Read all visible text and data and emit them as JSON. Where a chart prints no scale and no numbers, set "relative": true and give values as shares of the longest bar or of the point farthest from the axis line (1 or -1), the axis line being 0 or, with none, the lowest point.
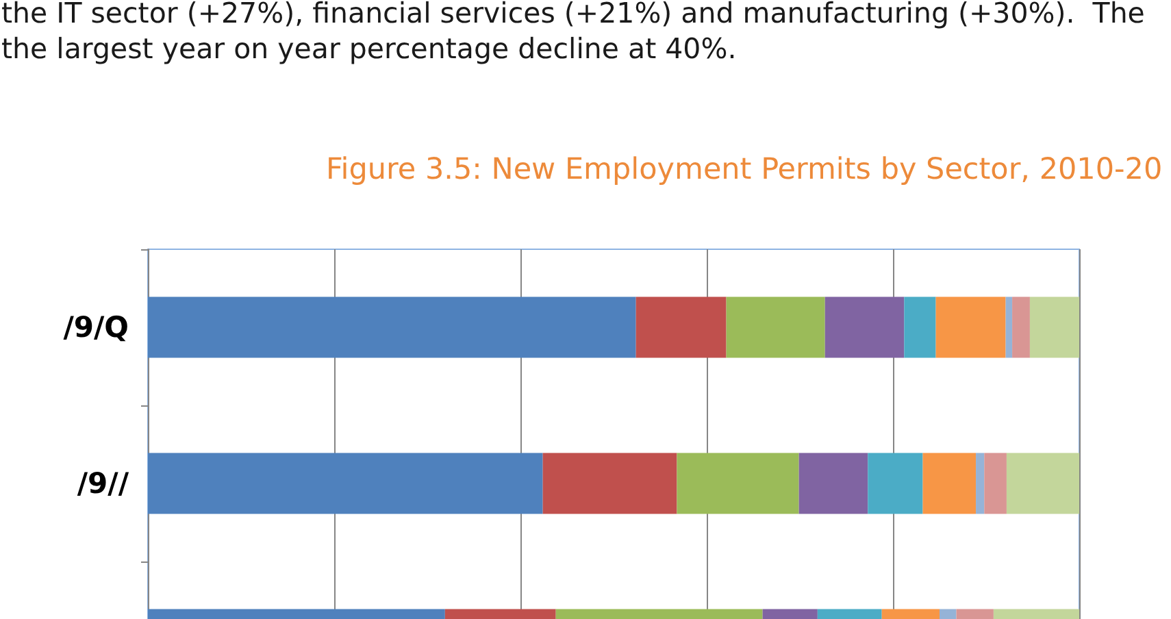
{
  "chart_data": {
    "type": "bar",
    "orientation": "horizontal",
    "stacked": true,
    "relative": true,
    "grid": "x",
    "title": "Figure 3.5: New Employment Permits by Sector, 2010-20",
    "annotations": [
      "the IT sector (+27%), financial services (+21%) and manufacturing (+30%).  The",
      "the largest year on year percentage decline at 40%."
    ],
    "categories": [
      "/9/Q",
      "/9//",
      null
    ],
    "series": [
      {
        "color": "#4f81bd",
        "values": [
          0.524,
          0.424,
          0.319
        ]
      },
      {
        "color": "#c0504d",
        "values": [
          0.097,
          0.144,
          0.119
        ]
      },
      {
        "color": "#9bbb59",
        "values": [
          0.106,
          0.131,
          0.222
        ]
      },
      {
        "color": "#8064a2",
        "values": [
          0.085,
          0.074,
          0.059
        ]
      },
      {
        "color": "#4bacc6",
        "values": [
          0.034,
          0.059,
          0.069
        ]
      },
      {
        "color": "#f79646",
        "values": [
          0.075,
          0.057,
          0.062
        ]
      },
      {
        "color": "#95b3d7",
        "values": [
          0.007,
          0.009,
          0.018
        ]
      },
      {
        "color": "#d99694",
        "values": [
          0.019,
          0.024,
          0.04
        ]
      },
      {
        "color": "#c3d69b",
        "values": [
          0.053,
          0.078,
          0.092
        ]
      }
    ]
  }
}
